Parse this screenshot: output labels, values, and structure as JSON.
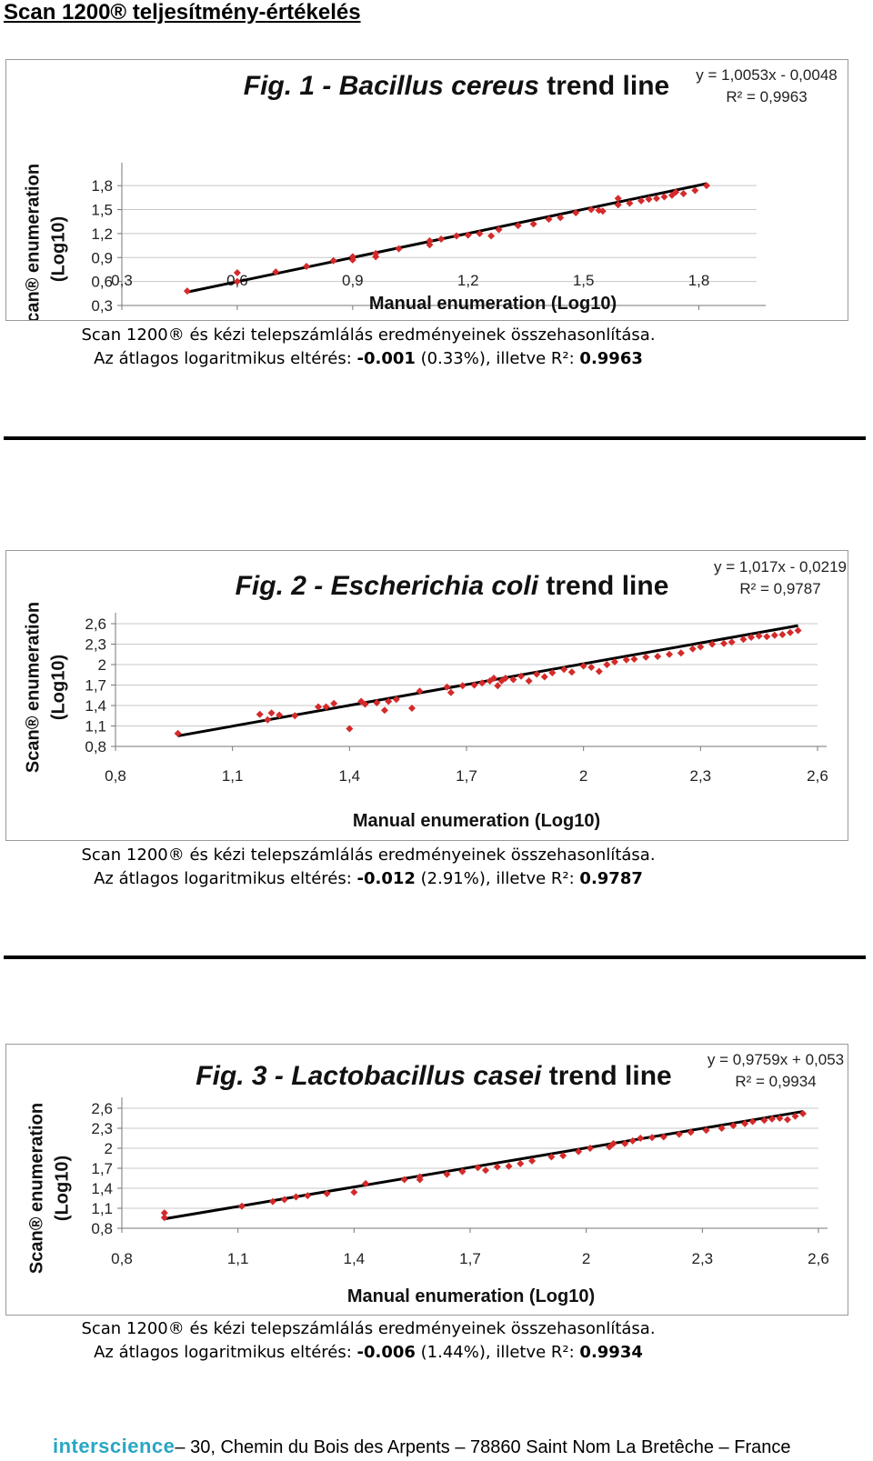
{
  "page_title": "Scan 1200® teljesítmény-értékelés",
  "footer": {
    "brand": "interscience",
    "address": "– 30, Chemin du Bois des Arpents – 78860 Saint Nom La Bretêche – France"
  },
  "colors": {
    "point": "#d42a2a",
    "trend": "#000000",
    "grid": "#c8c8c8"
  },
  "captions": [
    {
      "line1": "Scan 1200® és kézi telepszámlálás eredményeinek összehasonlítása.",
      "prefix": "Az átlagos logaritmikus eltérés: ",
      "value": "-0.001",
      "pct": " (0.33%), illetve R²: ",
      "r2": "0.9963"
    },
    {
      "line1": "Scan 1200® és kézi telepszámlálás eredményeinek összehasonlítása.",
      "prefix": "Az átlagos logaritmikus eltérés: ",
      "value": "-0.012",
      "pct": " (2.91%), illetve R²: ",
      "r2": "0.9787"
    },
    {
      "line1": "Scan 1200® és kézi telepszámlálás eredményeinek összehasonlítása.",
      "prefix": "Az átlagos logaritmikus eltérés: ",
      "value": "-0.006",
      "pct": " (1.44%), illetve R²: ",
      "r2": "0.9934"
    }
  ],
  "chart_data": [
    {
      "type": "scatter",
      "title_prefix": "Fig. 1 - ",
      "title_species": "Bacillus cereus",
      "title_suffix": " trend line",
      "xlabel": "Manual enumeration (Log10)",
      "ylabel_line1": "Scan® enumeration",
      "ylabel_line2": "(Log10)",
      "equation": "y = 1,0053x - 0,0048",
      "r2_label": "R² = 0,9963",
      "xlim": [
        0.3,
        1.95
      ],
      "ylim": [
        0.3,
        1.95
      ],
      "xticks": [
        "0,3",
        "0,6",
        "0,9",
        "1,2",
        "1,5",
        "1,8"
      ],
      "xtick_values": [
        0.3,
        0.6,
        0.9,
        1.2,
        1.5,
        1.8
      ],
      "yticks": [
        "0,3",
        "0,6",
        "0,9",
        "1,2",
        "1,5",
        "1,8"
      ],
      "ytick_values": [
        0.3,
        0.6,
        0.9,
        1.2,
        1.5,
        1.8
      ],
      "grid": "horizontal",
      "trend": {
        "slope": 1.0053,
        "intercept": -0.0048,
        "x_range": [
          0.47,
          1.82
        ]
      },
      "points": [
        [
          0.47,
          0.48
        ],
        [
          0.6,
          0.71
        ],
        [
          0.6,
          0.6
        ],
        [
          0.7,
          0.72
        ],
        [
          0.78,
          0.79
        ],
        [
          0.85,
          0.86
        ],
        [
          0.9,
          0.87
        ],
        [
          0.9,
          0.91
        ],
        [
          0.96,
          0.91
        ],
        [
          0.96,
          0.95
        ],
        [
          1.02,
          1.01
        ],
        [
          1.1,
          1.06
        ],
        [
          1.1,
          1.11
        ],
        [
          1.13,
          1.13
        ],
        [
          1.17,
          1.17
        ],
        [
          1.2,
          1.18
        ],
        [
          1.23,
          1.2
        ],
        [
          1.26,
          1.17
        ],
        [
          1.28,
          1.25
        ],
        [
          1.33,
          1.3
        ],
        [
          1.37,
          1.32
        ],
        [
          1.41,
          1.38
        ],
        [
          1.44,
          1.4
        ],
        [
          1.48,
          1.46
        ],
        [
          1.52,
          1.5
        ],
        [
          1.54,
          1.49
        ],
        [
          1.55,
          1.48
        ],
        [
          1.59,
          1.56
        ],
        [
          1.59,
          1.64
        ],
        [
          1.62,
          1.58
        ],
        [
          1.65,
          1.61
        ],
        [
          1.67,
          1.63
        ],
        [
          1.69,
          1.64
        ],
        [
          1.71,
          1.66
        ],
        [
          1.73,
          1.68
        ],
        [
          1.74,
          1.72
        ],
        [
          1.76,
          1.7
        ],
        [
          1.79,
          1.74
        ],
        [
          1.82,
          1.8
        ]
      ]
    },
    {
      "type": "scatter",
      "title_prefix": "Fig. 2 - ",
      "title_species": "Escherichia coli",
      "title_suffix": " trend line",
      "xlabel": "Manual enumeration (Log10)",
      "ylabel_line1": "Scan® enumeration",
      "ylabel_line2": "(Log10)",
      "equation": "y = 1,017x - 0,0219",
      "r2_label": "R² = 0,9787",
      "xlim": [
        0.8,
        2.6
      ],
      "ylim": [
        0.8,
        2.6
      ],
      "xticks": [
        "0,8",
        "1,1",
        "1,4",
        "1,7",
        "2",
        "2,3",
        "2,6"
      ],
      "xtick_values": [
        0.8,
        1.1,
        1.4,
        1.7,
        2.0,
        2.3,
        2.6
      ],
      "yticks": [
        "0,8",
        "1,1",
        "1,4",
        "1,7",
        "2",
        "2,3",
        "2,6"
      ],
      "ytick_values": [
        0.8,
        1.1,
        1.4,
        1.7,
        2.0,
        2.3,
        2.6
      ],
      "grid": "horizontal",
      "trend": {
        "slope": 1.017,
        "intercept": -0.0219,
        "x_range": [
          0.96,
          2.55
        ]
      },
      "points": [
        [
          0.96,
          0.99
        ],
        [
          1.17,
          1.27
        ],
        [
          1.19,
          1.19
        ],
        [
          1.2,
          1.29
        ],
        [
          1.22,
          1.26
        ],
        [
          1.26,
          1.25
        ],
        [
          1.32,
          1.38
        ],
        [
          1.34,
          1.38
        ],
        [
          1.36,
          1.43
        ],
        [
          1.4,
          1.06
        ],
        [
          1.43,
          1.46
        ],
        [
          1.44,
          1.42
        ],
        [
          1.47,
          1.44
        ],
        [
          1.49,
          1.33
        ],
        [
          1.5,
          1.46
        ],
        [
          1.52,
          1.49
        ],
        [
          1.56,
          1.36
        ],
        [
          1.58,
          1.61
        ],
        [
          1.65,
          1.67
        ],
        [
          1.66,
          1.59
        ],
        [
          1.69,
          1.69
        ],
        [
          1.72,
          1.7
        ],
        [
          1.74,
          1.73
        ],
        [
          1.76,
          1.76
        ],
        [
          1.77,
          1.8
        ],
        [
          1.78,
          1.69
        ],
        [
          1.79,
          1.76
        ],
        [
          1.8,
          1.8
        ],
        [
          1.82,
          1.78
        ],
        [
          1.84,
          1.83
        ],
        [
          1.86,
          1.76
        ],
        [
          1.88,
          1.86
        ],
        [
          1.9,
          1.82
        ],
        [
          1.92,
          1.88
        ],
        [
          1.95,
          1.93
        ],
        [
          1.97,
          1.89
        ],
        [
          2.0,
          1.98
        ],
        [
          2.02,
          1.96
        ],
        [
          2.04,
          1.9
        ],
        [
          2.06,
          2.0
        ],
        [
          2.08,
          2.04
        ],
        [
          2.11,
          2.07
        ],
        [
          2.13,
          2.08
        ],
        [
          2.16,
          2.11
        ],
        [
          2.19,
          2.12
        ],
        [
          2.22,
          2.15
        ],
        [
          2.25,
          2.17
        ],
        [
          2.28,
          2.23
        ],
        [
          2.3,
          2.26
        ],
        [
          2.33,
          2.3
        ],
        [
          2.36,
          2.31
        ],
        [
          2.38,
          2.33
        ],
        [
          2.41,
          2.37
        ],
        [
          2.43,
          2.4
        ],
        [
          2.45,
          2.42
        ],
        [
          2.47,
          2.41
        ],
        [
          2.49,
          2.43
        ],
        [
          2.51,
          2.44
        ],
        [
          2.53,
          2.47
        ],
        [
          2.55,
          2.5
        ]
      ]
    },
    {
      "type": "scatter",
      "title_prefix": "Fig. 3 - ",
      "title_species": "Lactobacillus casei",
      "title_suffix": " trend line",
      "xlabel": "Manual enumeration (Log10)",
      "ylabel_line1": "Scan® enumeration",
      "ylabel_line2": "(Log10)",
      "equation": "y = 0,9759x + 0,053",
      "r2_label": "R² = 0,9934",
      "xlim": [
        0.8,
        2.6
      ],
      "ylim": [
        0.8,
        2.6
      ],
      "xticks": [
        "0,8",
        "1,1",
        "1,4",
        "1,7",
        "2",
        "2,3",
        "2,6"
      ],
      "xtick_values": [
        0.8,
        1.1,
        1.4,
        1.7,
        2.0,
        2.3,
        2.6
      ],
      "yticks": [
        "0,8",
        "1,1",
        "1,4",
        "1,7",
        "2",
        "2,3",
        "2,6"
      ],
      "ytick_values": [
        0.8,
        1.1,
        1.4,
        1.7,
        2.0,
        2.3,
        2.6
      ],
      "grid": "horizontal",
      "trend": {
        "slope": 0.9759,
        "intercept": 0.053,
        "x_range": [
          0.91,
          2.56
        ]
      },
      "points": [
        [
          0.91,
          0.96
        ],
        [
          0.91,
          1.03
        ],
        [
          1.11,
          1.13
        ],
        [
          1.19,
          1.2
        ],
        [
          1.22,
          1.23
        ],
        [
          1.25,
          1.27
        ],
        [
          1.28,
          1.29
        ],
        [
          1.33,
          1.32
        ],
        [
          1.4,
          1.34
        ],
        [
          1.43,
          1.47
        ],
        [
          1.53,
          1.53
        ],
        [
          1.57,
          1.53
        ],
        [
          1.57,
          1.57
        ],
        [
          1.64,
          1.61
        ],
        [
          1.68,
          1.65
        ],
        [
          1.72,
          1.71
        ],
        [
          1.74,
          1.67
        ],
        [
          1.77,
          1.72
        ],
        [
          1.8,
          1.73
        ],
        [
          1.83,
          1.77
        ],
        [
          1.86,
          1.81
        ],
        [
          1.91,
          1.87
        ],
        [
          1.94,
          1.89
        ],
        [
          1.98,
          1.95
        ],
        [
          2.01,
          2.0
        ],
        [
          2.06,
          2.02
        ],
        [
          2.07,
          2.07
        ],
        [
          2.1,
          2.07
        ],
        [
          2.12,
          2.11
        ],
        [
          2.14,
          2.15
        ],
        [
          2.17,
          2.16
        ],
        [
          2.2,
          2.17
        ],
        [
          2.24,
          2.21
        ],
        [
          2.27,
          2.24
        ],
        [
          2.31,
          2.27
        ],
        [
          2.35,
          2.3
        ],
        [
          2.38,
          2.34
        ],
        [
          2.41,
          2.37
        ],
        [
          2.43,
          2.4
        ],
        [
          2.46,
          2.42
        ],
        [
          2.48,
          2.44
        ],
        [
          2.5,
          2.45
        ],
        [
          2.52,
          2.43
        ],
        [
          2.54,
          2.48
        ],
        [
          2.56,
          2.52
        ]
      ]
    }
  ]
}
